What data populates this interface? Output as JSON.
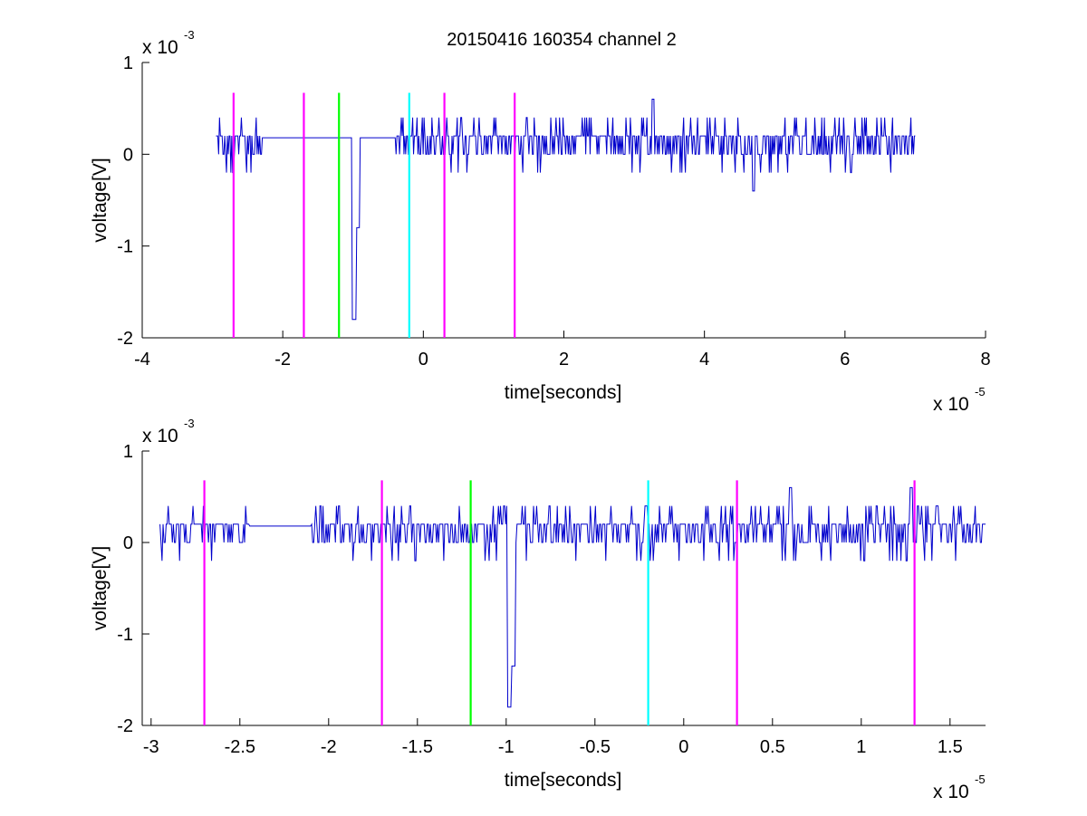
{
  "figure": {
    "title": "20150416 160354 channel 2"
  },
  "chart_data": [
    {
      "type": "line",
      "title": "20150416 160354 channel 2",
      "xlabel": "time[seconds]",
      "ylabel": "voltage[V]",
      "x_multiplier": "x 10",
      "x_exponent": "-5",
      "y_multiplier": "x 10",
      "y_exponent": "-3",
      "xlim": [
        -4,
        8
      ],
      "ylim": [
        -2,
        1
      ],
      "xticks": [
        -4,
        -2,
        0,
        2,
        4,
        6,
        8
      ],
      "xtick_labels": [
        "-4",
        "-2",
        "0",
        "2",
        "4",
        "6",
        "8"
      ],
      "yticks": [
        -2,
        -1,
        0,
        1
      ],
      "ytick_labels": [
        "-2",
        "-1",
        "0",
        "1"
      ],
      "grid": false,
      "series": [
        {
          "color": "#0000cc",
          "x_range": [
            -2.95,
            7.0
          ],
          "noise_levels": [
            -0.2,
            0,
            0.2,
            0.4
          ],
          "baseline": 0.18,
          "quiet_range": [
            -2.3,
            -0.4
          ],
          "features": [
            {
              "x": -0.98,
              "y": -1.8,
              "width": 0.08
            },
            {
              "x": -0.93,
              "y": -0.8,
              "width": 0.05
            },
            {
              "x": 4.7,
              "y": -0.4,
              "width": 0.04
            },
            {
              "x": 3.27,
              "y": 0.6,
              "width": 0.04
            }
          ]
        }
      ],
      "vlines": [
        {
          "x": -2.7,
          "color": "#ff00ff"
        },
        {
          "x": -1.7,
          "color": "#ff00ff"
        },
        {
          "x": -1.2,
          "color": "#00ff00"
        },
        {
          "x": -0.2,
          "color": "#00ffff"
        },
        {
          "x": 0.3,
          "color": "#ff00ff"
        },
        {
          "x": 1.3,
          "color": "#ff00ff"
        }
      ],
      "vline_ylim": [
        -2,
        0.67
      ]
    },
    {
      "type": "line",
      "xlabel": "time[seconds]",
      "ylabel": "voltage[V]",
      "x_multiplier": "x 10",
      "x_exponent": "-5",
      "y_multiplier": "x 10",
      "y_exponent": "-3",
      "xlim": [
        -3.05,
        1.7
      ],
      "ylim": [
        -2,
        1
      ],
      "xticks": [
        -3,
        -2.5,
        -2,
        -1.5,
        -1,
        -0.5,
        0,
        0.5,
        1,
        1.5
      ],
      "xtick_labels": [
        "-3",
        "-2.5",
        "-2",
        "-1.5",
        "-1",
        "-0.5",
        "0",
        "0.5",
        "1",
        "1.5"
      ],
      "yticks": [
        -2,
        -1,
        0,
        1
      ],
      "ytick_labels": [
        "-2",
        "-1",
        "0",
        "1"
      ],
      "grid": false,
      "series": [
        {
          "color": "#0000cc",
          "x_range": [
            -2.95,
            1.7
          ],
          "noise_levels": [
            -0.2,
            0,
            0.2,
            0.4
          ],
          "baseline": 0.18,
          "quiet_range": [
            -2.45,
            -2.1
          ],
          "features": [
            {
              "x": -0.98,
              "y": -1.8,
              "width": 0.03
            },
            {
              "x": -0.96,
              "y": -1.35,
              "width": 0.02
            },
            {
              "x": 0.6,
              "y": 0.6,
              "width": 0.02
            },
            {
              "x": 1.28,
              "y": 0.6,
              "width": 0.02
            }
          ]
        }
      ],
      "vlines": [
        {
          "x": -2.7,
          "color": "#ff00ff"
        },
        {
          "x": -1.7,
          "color": "#ff00ff"
        },
        {
          "x": -1.2,
          "color": "#00ff00"
        },
        {
          "x": -0.2,
          "color": "#00ffff"
        },
        {
          "x": 0.3,
          "color": "#ff00ff"
        },
        {
          "x": 1.3,
          "color": "#ff00ff"
        }
      ],
      "vline_ylim": [
        -2,
        0.68
      ]
    }
  ]
}
